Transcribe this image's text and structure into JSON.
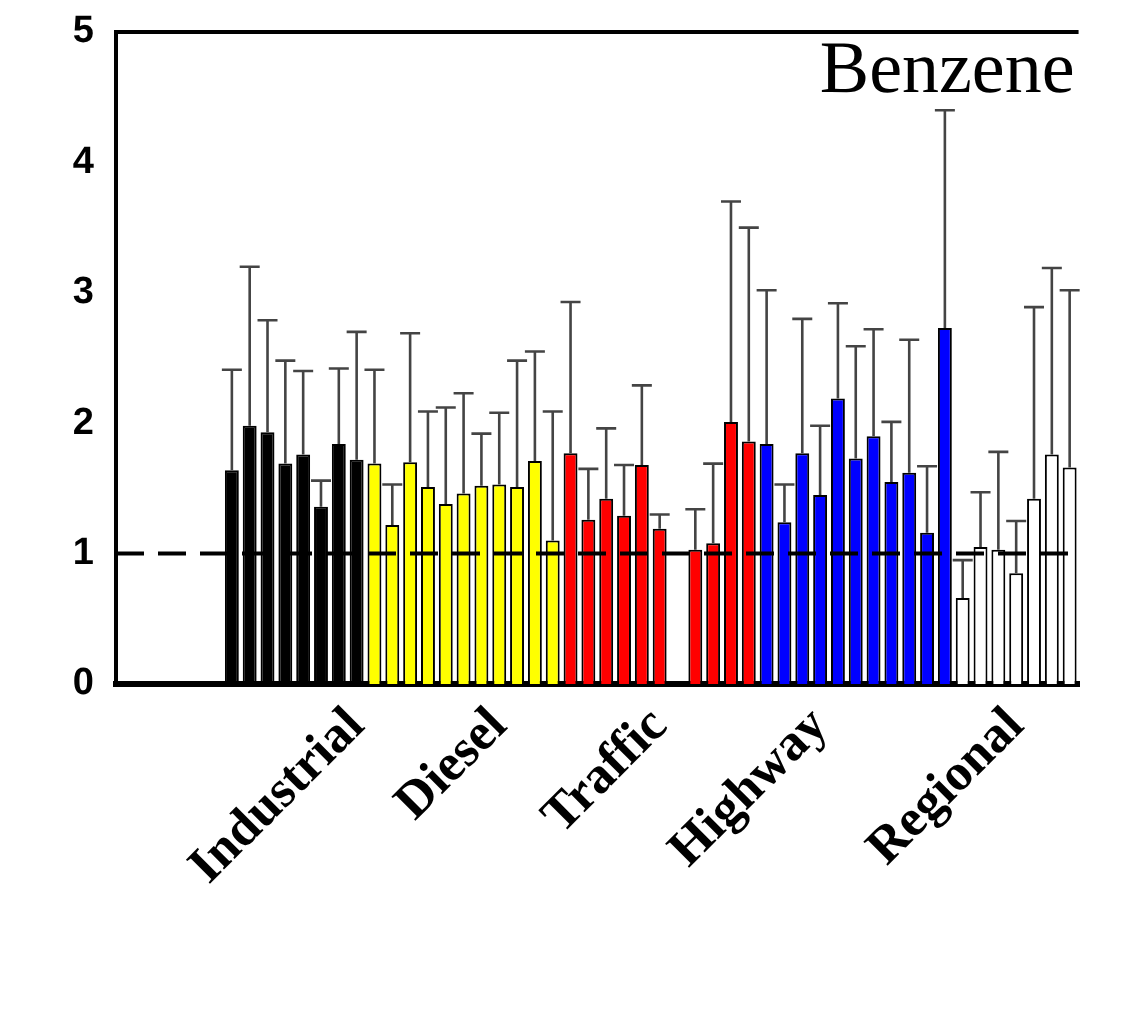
{
  "chart_data": {
    "type": "bar",
    "categories": [
      null,
      null,
      null,
      null,
      null,
      null,
      null,
      null,
      null,
      null,
      null,
      null,
      null,
      "Industrial",
      null,
      null,
      null,
      null,
      null,
      null,
      null,
      "Diesel",
      null,
      null,
      null,
      null,
      null,
      null,
      null,
      null,
      "Traffic",
      null,
      null,
      null,
      null,
      null,
      null,
      null,
      null,
      "Highway",
      null,
      null,
      null,
      null,
      null,
      null,
      null,
      null,
      null,
      null,
      "Regional",
      null,
      null,
      null
    ],
    "values": [
      null,
      null,
      null,
      null,
      null,
      null,
      1.64,
      1.98,
      1.93,
      1.69,
      1.76,
      1.36,
      1.84,
      1.72,
      1.69,
      1.22,
      1.7,
      1.51,
      1.38,
      1.46,
      1.52,
      1.53,
      1.51,
      1.71,
      1.1,
      1.77,
      1.26,
      1.42,
      1.29,
      1.68,
      1.19,
      null,
      1.03,
      1.08,
      2.01,
      1.86,
      1.84,
      1.24,
      1.77,
      1.45,
      2.19,
      1.73,
      1.9,
      1.55,
      1.62,
      1.16,
      2.73,
      0.66,
      1.05,
      1.03,
      0.85,
      1.42,
      1.76,
      1.66
    ],
    "errors": [
      null,
      null,
      null,
      null,
      null,
      null,
      [
        1.64,
        2.41
      ],
      [
        1.98,
        3.2
      ],
      [
        1.93,
        2.79
      ],
      [
        1.69,
        2.48
      ],
      [
        1.76,
        2.4
      ],
      [
        1.36,
        1.56
      ],
      [
        1.84,
        2.42
      ],
      [
        1.72,
        2.7
      ],
      [
        1.69,
        2.41
      ],
      [
        1.22,
        1.53
      ],
      [
        1.7,
        2.69
      ],
      [
        1.51,
        2.09
      ],
      [
        1.38,
        2.12
      ],
      [
        1.46,
        2.23
      ],
      [
        1.52,
        1.92
      ],
      [
        1.53,
        2.08
      ],
      [
        1.51,
        2.48
      ],
      [
        1.71,
        2.55
      ],
      [
        1.1,
        2.09
      ],
      [
        1.77,
        2.93
      ],
      [
        1.26,
        1.65
      ],
      [
        1.42,
        1.96
      ],
      [
        1.29,
        1.68
      ],
      [
        1.68,
        2.29
      ],
      [
        1.19,
        1.3
      ],
      null,
      [
        1.03,
        1.34
      ],
      [
        1.08,
        1.69
      ],
      [
        2.01,
        3.7
      ],
      [
        1.86,
        3.5
      ],
      [
        1.84,
        3.02
      ],
      [
        1.24,
        1.53
      ],
      [
        1.77,
        2.8
      ],
      [
        1.45,
        1.98
      ],
      [
        2.19,
        2.92
      ],
      [
        1.73,
        2.59
      ],
      [
        1.9,
        2.72
      ],
      [
        1.55,
        2.01
      ],
      [
        1.62,
        2.64
      ],
      [
        1.16,
        1.67
      ],
      [
        2.73,
        4.4
      ],
      [
        0.66,
        0.95
      ],
      [
        1.05,
        1.47
      ],
      [
        1.03,
        1.78
      ],
      [
        0.85,
        1.25
      ],
      [
        1.42,
        2.89
      ],
      [
        1.76,
        3.19
      ],
      [
        1.66,
        3.02
      ]
    ],
    "colors": [
      null,
      null,
      null,
      null,
      null,
      null,
      "#000000",
      "#000000",
      "#000000",
      "#000000",
      "#000000",
      "#000000",
      "#000000",
      "#000000",
      "#ffff00",
      "#ffff00",
      "#ffff00",
      "#ffff00",
      "#ffff00",
      "#ffff00",
      "#ffff00",
      "#ffff00",
      "#ffff00",
      "#ffff00",
      "#ffff00",
      "#ff0000",
      "#ff0000",
      "#ff0000",
      "#ff0000",
      "#ff0000",
      "#ff0000",
      null,
      "#ff0000",
      "#ff0000",
      "#ff0000",
      "#ff0000",
      "#0000ff",
      "#0000ff",
      "#0000ff",
      "#0000ff",
      "#0000ff",
      "#0000ff",
      "#0000ff",
      "#0000ff",
      "#0000ff",
      "#0000ff",
      "#0000ff",
      "#ffffff",
      "#ffffff",
      "#ffffff",
      "#ffffff",
      "#ffffff",
      "#ffffff",
      "#ffffff"
    ],
    "ylim": [
      0,
      5
    ],
    "yticks": [
      0,
      1,
      2,
      3,
      4,
      5
    ],
    "grid": false,
    "legend": false,
    "ref_lines": [
      {
        "axis": "y",
        "value": 1,
        "line_style": "dashed"
      }
    ],
    "annotations": [
      "Benzene"
    ]
  }
}
